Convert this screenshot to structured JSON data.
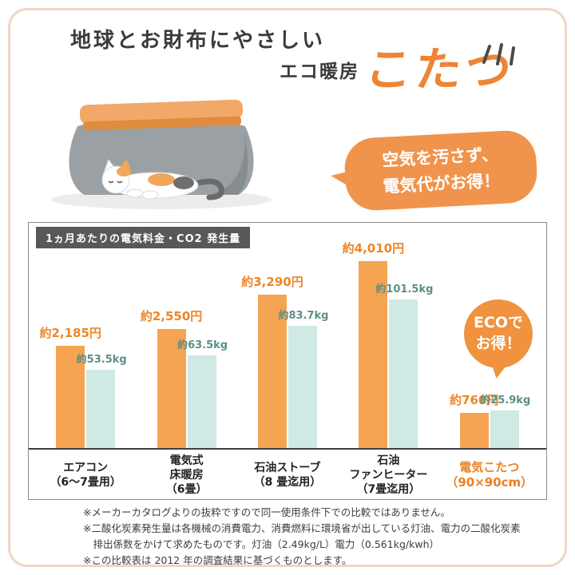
{
  "header": {
    "title_line1": "地球とお財布にやさしい",
    "subtitle_prefix": "エコ暖房",
    "subtitle_main": "こたつ"
  },
  "bubble": {
    "line1": "空気を汚さず、",
    "line2": "電気代がお得！"
  },
  "chart_data": {
    "type": "bar",
    "title": "1ヵ月あたりの電気料金・CO2 発生量",
    "categories": [
      [
        "エアコン",
        "（6～7畳用）"
      ],
      [
        "電気式",
        "床暖房",
        "（6畳）"
      ],
      [
        "石油ストーブ",
        "（8 畳迄用）"
      ],
      [
        "石油",
        "ファンヒーター",
        "（7畳迄用）"
      ],
      [
        "電気こたつ",
        "（90×90cm）"
      ]
    ],
    "highlight_index": 4,
    "series": [
      {
        "name": "電気料金",
        "unit": "円",
        "color": "#f5a451",
        "values": [
          2185,
          2550,
          3290,
          4010,
          760
        ],
        "labels": [
          "約2,185円",
          "約2,550円",
          "約3,290円",
          "約4,010円",
          "約760円"
        ]
      },
      {
        "name": "CO2発生量",
        "unit": "kg",
        "color": "#cfe9e4",
        "values": [
          53.5,
          63.5,
          83.7,
          101.5,
          25.9
        ],
        "labels": [
          "約53.5kg",
          "約63.5kg",
          "約83.7kg",
          "約101.5kg",
          "約25.9kg"
        ]
      }
    ],
    "ylim_price": [
      0,
      4300
    ],
    "ylim_co2": [
      0,
      110
    ],
    "grid": false,
    "legend_position": "none"
  },
  "eco_badge": {
    "line1": "ECOで",
    "line2": "お得！"
  },
  "footnotes": [
    "※メーカーカタログよりの抜粋ですので同一使用条件下での比較ではありません。",
    "※二酸化炭素発生量は各機械の消費電力、消費燃料に環境省が出している灯油、電力の二酸化炭素排出係数をかけて求めたものです。灯油（2.49kg/L）電力（0.561kg/kwh）",
    "※この比較表は 2012 年の調査結果に基づくものとします。"
  ],
  "colors": {
    "accent_orange": "#ee8435",
    "bar_orange": "#f5a451",
    "bar_teal": "#cfe9e4",
    "price_text": "#ee8527",
    "kg_text": "#5d8f88",
    "badge_bg": "#595757",
    "frame_pink": "#f6d2c6"
  }
}
